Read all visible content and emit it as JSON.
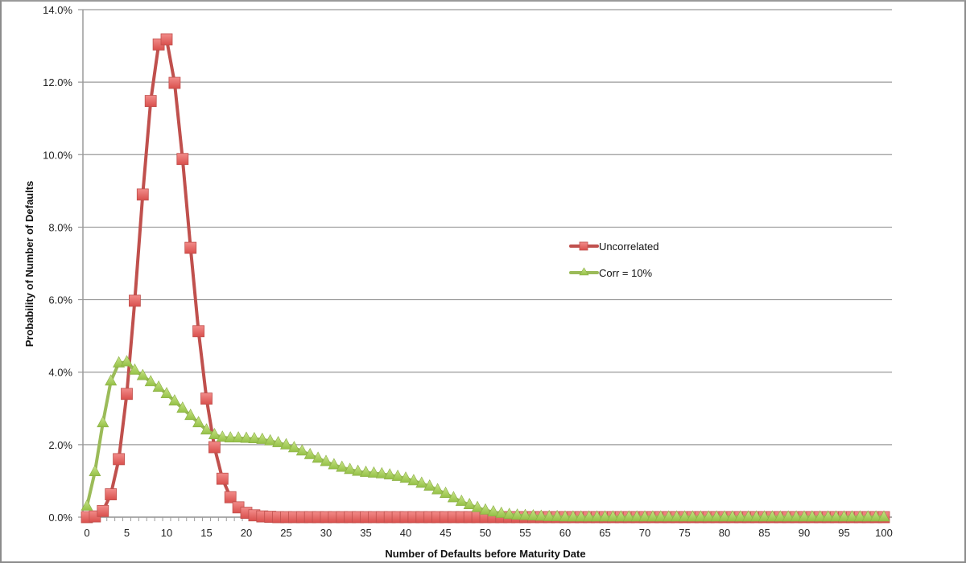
{
  "chart_data": {
    "type": "line",
    "title": "",
    "xlabel": "Number of Defaults before Maturity Date",
    "ylabel": "Probability of Number of Defaults",
    "xlim": [
      0,
      100
    ],
    "ylim": [
      0,
      0.14
    ],
    "y_ticks": [
      "0.0%",
      "2.0%",
      "4.0%",
      "6.0%",
      "8.0%",
      "10.0%",
      "12.0%",
      "14.0%"
    ],
    "x_ticks": [
      "0",
      "5",
      "10",
      "15",
      "20",
      "25",
      "30",
      "35",
      "40",
      "45",
      "50",
      "55",
      "60",
      "65",
      "70",
      "75",
      "80",
      "85",
      "90",
      "95",
      "100"
    ],
    "grid": true,
    "legend_position": "right-middle",
    "x": [
      0,
      1,
      2,
      3,
      4,
      5,
      6,
      7,
      8,
      9,
      10,
      11,
      12,
      13,
      14,
      15,
      16,
      17,
      18,
      19,
      20,
      21,
      22,
      23,
      24,
      25,
      26,
      27,
      28,
      29,
      30,
      31,
      32,
      33,
      34,
      35,
      36,
      37,
      38,
      39,
      40,
      41,
      42,
      43,
      44,
      45,
      46,
      47,
      48,
      49,
      50,
      51,
      52,
      53,
      54,
      55,
      56,
      57,
      58,
      59,
      60,
      61,
      62,
      63,
      64,
      65,
      66,
      67,
      68,
      69,
      70,
      71,
      72,
      73,
      74,
      75,
      76,
      77,
      78,
      79,
      80,
      81,
      82,
      83,
      84,
      85,
      86,
      87,
      88,
      89,
      90,
      91,
      92,
      93,
      94,
      95,
      96,
      97,
      98,
      99,
      100
    ],
    "series": [
      {
        "name": "Uncorrelated",
        "color": "#c0504d",
        "marker": "square",
        "values": [
          0.0,
          0.0002,
          0.0017,
          0.0063,
          0.016,
          0.034,
          0.0597,
          0.089,
          0.1148,
          0.1304,
          0.1318,
          0.1198,
          0.0988,
          0.0743,
          0.0513,
          0.0327,
          0.0193,
          0.0106,
          0.0055,
          0.0027,
          0.0012,
          0.0005,
          0.0002,
          0.0001,
          0.0,
          0.0,
          0.0,
          0.0,
          0.0,
          0.0,
          0.0,
          0.0,
          0.0,
          0.0,
          0.0,
          0.0,
          0.0,
          0.0,
          0.0,
          0.0,
          0.0,
          0.0,
          0.0,
          0.0,
          0.0,
          0.0,
          0.0,
          0.0,
          0.0,
          0.0,
          0.0,
          0.0,
          0.0,
          0.0,
          0.0,
          0.0,
          0.0,
          0.0,
          0.0,
          0.0,
          0.0,
          0.0,
          0.0,
          0.0,
          0.0,
          0.0,
          0.0,
          0.0,
          0.0,
          0.0,
          0.0,
          0.0,
          0.0,
          0.0,
          0.0,
          0.0,
          0.0,
          0.0,
          0.0,
          0.0,
          0.0,
          0.0,
          0.0,
          0.0,
          0.0,
          0.0,
          0.0,
          0.0,
          0.0,
          0.0,
          0.0,
          0.0,
          0.0,
          0.0,
          0.0,
          0.0,
          0.0,
          0.0,
          0.0,
          0.0,
          0.0
        ]
      },
      {
        "name": "Corr = 10%",
        "color": "#9bbb59",
        "marker": "triangle",
        "values": [
          0.003,
          0.0125,
          0.026,
          0.0375,
          0.0425,
          0.0428,
          0.0405,
          0.039,
          0.0373,
          0.0358,
          0.034,
          0.032,
          0.03,
          0.028,
          0.026,
          0.024,
          0.0227,
          0.022,
          0.0218,
          0.0218,
          0.0217,
          0.0216,
          0.0214,
          0.021,
          0.0205,
          0.0199,
          0.0191,
          0.0182,
          0.0172,
          0.0162,
          0.0153,
          0.0144,
          0.0137,
          0.0131,
          0.0126,
          0.0123,
          0.0121,
          0.0119,
          0.0116,
          0.0112,
          0.0107,
          0.01,
          0.0093,
          0.0085,
          0.0075,
          0.0065,
          0.0053,
          0.0043,
          0.0034,
          0.0026,
          0.0019,
          0.0014,
          0.001,
          0.0007,
          0.0005,
          0.0004,
          0.0003,
          0.0002,
          0.0001,
          0.0001,
          0.0,
          0.0,
          0.0,
          0.0,
          0.0,
          0.0,
          0.0,
          0.0,
          0.0,
          0.0,
          0.0,
          0.0,
          0.0,
          0.0,
          0.0,
          0.0,
          0.0,
          0.0,
          0.0,
          0.0,
          0.0,
          0.0,
          0.0,
          0.0,
          0.0,
          0.0,
          0.0,
          0.0,
          0.0,
          0.0,
          0.0,
          0.0,
          0.0,
          0.0,
          0.0,
          0.0,
          0.0,
          0.0,
          0.0,
          0.0,
          0.0
        ]
      }
    ]
  },
  "legend": {
    "items": [
      {
        "label": "Uncorrelated",
        "color": "#c0504d"
      },
      {
        "label": "Corr = 10%",
        "color": "#9bbb59"
      }
    ]
  },
  "axes": {
    "x_title": "Number of Defaults before Maturity Date",
    "y_title": "Probability of Number of Defaults"
  }
}
